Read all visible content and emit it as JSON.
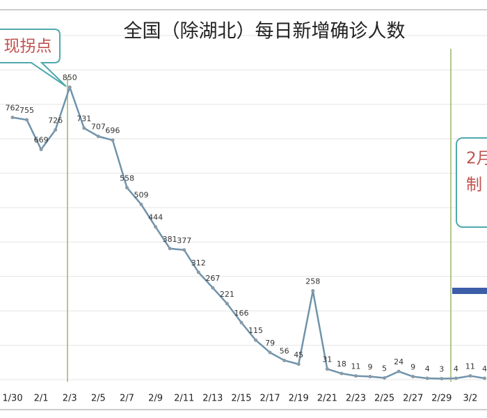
{
  "chart_data": {
    "type": "line",
    "title": "全国（除湖北）每日新增确诊人数",
    "categories": [
      "1/30",
      null,
      "2/1",
      null,
      "2/3",
      null,
      "2/5",
      null,
      "2/7",
      null,
      "2/9",
      null,
      "2/11",
      null,
      "2/13",
      null,
      "2/15",
      null,
      "2/17",
      null,
      "2/19",
      null,
      "2/21",
      null,
      "2/23",
      null,
      "2/25",
      null,
      "2/27",
      null,
      "2/29",
      null,
      "3/2",
      null
    ],
    "values": [
      762,
      755,
      669,
      726,
      850,
      731,
      707,
      696,
      558,
      509,
      444,
      381,
      377,
      312,
      267,
      221,
      166,
      115,
      79,
      56,
      45,
      258,
      31,
      18,
      11,
      9,
      5,
      24,
      9,
      4,
      3,
      4,
      11,
      4
    ],
    "color": "#6f93ab",
    "ylim": [
      0,
      1000
    ],
    "annotations": [
      "现拐点",
      "2月",
      "制"
    ]
  }
}
